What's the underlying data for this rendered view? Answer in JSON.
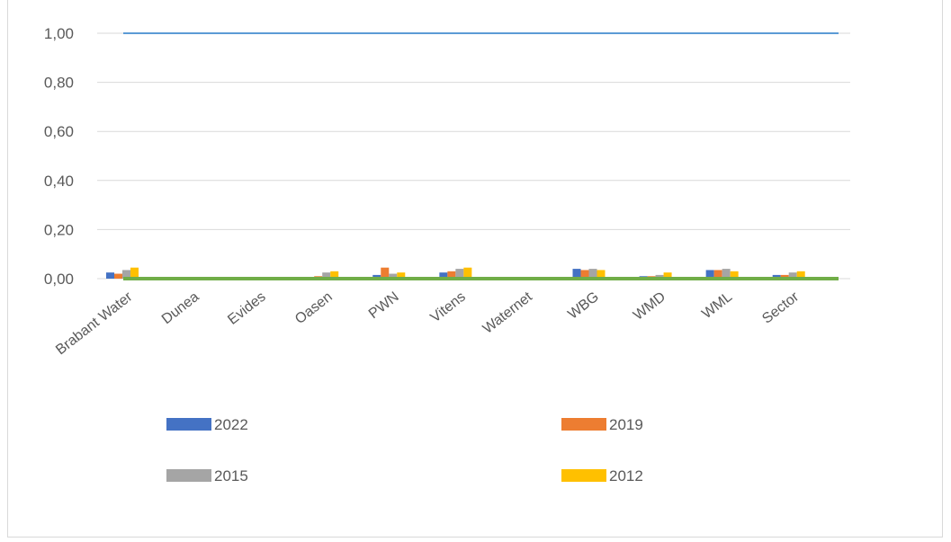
{
  "chart_data": {
    "type": "bar",
    "categories": [
      "Brabant Water",
      "Dunea",
      "Evides",
      "Oasen",
      "PWN",
      "Vitens",
      "Waternet",
      "WBG",
      "WMD",
      "WML",
      "Sector"
    ],
    "series": [
      {
        "name": "2022",
        "color": "#4472C4",
        "values": [
          0.025,
          0.0,
          0.0,
          0.005,
          0.015,
          0.025,
          0.0,
          0.04,
          0.01,
          0.035,
          0.015
        ]
      },
      {
        "name": "2019",
        "color": "#ED7D31",
        "values": [
          0.02,
          0.0,
          0.0,
          0.01,
          0.045,
          0.03,
          0.0,
          0.035,
          0.01,
          0.035,
          0.015
        ]
      },
      {
        "name": "2015",
        "color": "#A5A5A5",
        "values": [
          0.035,
          0.0,
          0.0,
          0.025,
          0.02,
          0.04,
          0.0,
          0.04,
          0.015,
          0.04,
          0.025
        ]
      },
      {
        "name": "2012",
        "color": "#FFC000",
        "values": [
          0.045,
          0.0,
          0.0,
          0.03,
          0.025,
          0.045,
          0.0,
          0.035,
          0.025,
          0.03,
          0.03
        ]
      }
    ],
    "reference_lines": [
      {
        "value": 1.0,
        "color": "#5B9BD5"
      },
      {
        "value": 0.0,
        "color": "#70AD47"
      }
    ],
    "y_ticks": [
      "0,00",
      "0,20",
      "0,40",
      "0,60",
      "0,80",
      "1,00"
    ],
    "ylim": [
      0,
      1.0
    ],
    "grid": true,
    "legend_position": "bottom",
    "title": "",
    "xlabel": "",
    "ylabel": ""
  }
}
